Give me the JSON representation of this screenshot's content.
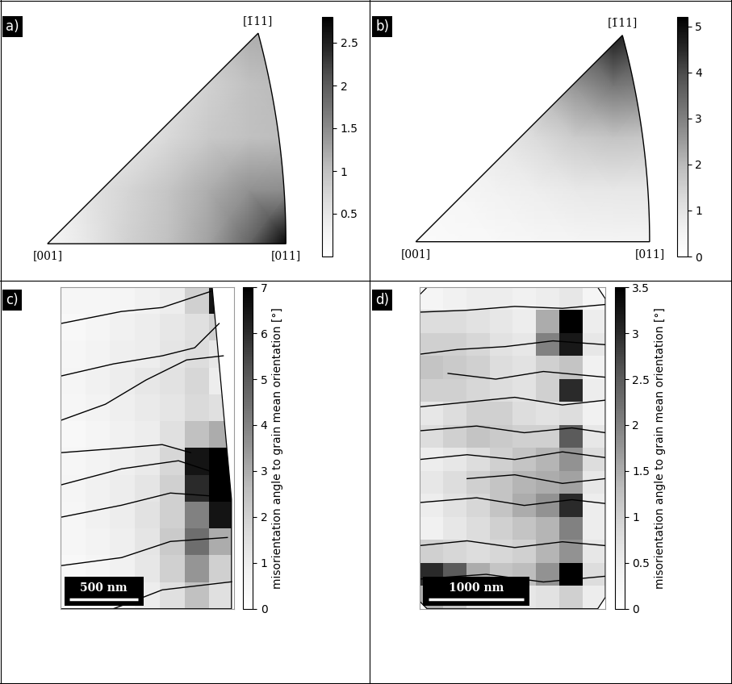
{
  "chart_data": [
    {
      "type": "inverse_pole_figure",
      "panel_label": "a)",
      "corner_labels": [
        "[001]",
        "[011]",
        "[1̄11]"
      ],
      "grid_x": [
        0,
        0.07,
        0.14,
        0.21,
        0.28,
        0.35,
        0.42
      ],
      "grid_y": [
        0,
        0.0925,
        0.185,
        0.2775,
        0.37
      ],
      "density": [
        [
          0.2,
          0.5,
          0.8,
          1.0,
          1.3,
          1.9,
          2.8
        ],
        [
          0.2,
          0.55,
          0.75,
          0.95,
          1.2,
          1.45,
          1.5
        ],
        [
          0.2,
          0.3,
          0.5,
          0.7,
          0.9,
          1.0,
          1.05
        ],
        [
          0.2,
          0.3,
          0.4,
          0.6,
          0.8,
          1.0,
          1.1
        ],
        [
          0.2,
          0.3,
          0.4,
          0.6,
          0.9,
          1.2,
          1.2
        ]
      ],
      "colorbar": {
        "range": [
          0,
          2.8
        ],
        "ticks": [
          0.5,
          1,
          1.5,
          2,
          2.5
        ]
      }
    },
    {
      "type": "inverse_pole_figure",
      "panel_label": "b)",
      "corner_labels": [
        "[001]",
        "[011]",
        "[1̄11]"
      ],
      "grid_x": [
        0,
        0.07,
        0.14,
        0.21,
        0.28,
        0.35,
        0.42
      ],
      "grid_y": [
        0,
        0.0925,
        0.185,
        0.2775,
        0.37
      ],
      "density": [
        [
          0.2,
          0.25,
          0.3,
          0.4,
          0.45,
          0.5,
          0.5
        ],
        [
          0.25,
          0.4,
          0.55,
          0.7,
          0.85,
          0.9,
          0.9
        ],
        [
          0.4,
          0.6,
          0.85,
          1.2,
          1.6,
          1.8,
          1.7
        ],
        [
          0.45,
          0.75,
          1.1,
          1.8,
          2.6,
          3.2,
          3.0
        ],
        [
          0.5,
          0.85,
          1.3,
          2.1,
          3.3,
          4.8,
          4.0
        ]
      ],
      "colorbar": {
        "range": [
          0,
          5.2
        ],
        "ticks": [
          0,
          1,
          2,
          3,
          4,
          5
        ]
      }
    },
    {
      "type": "map",
      "panel_label": "c)",
      "xlim": [
        0,
        1260
      ],
      "ylim": [
        2350,
        0
      ],
      "tick_labels": false,
      "outline": [
        [
          0,
          0
        ],
        [
          1100,
          0
        ],
        [
          1240,
          1550
        ],
        [
          1240,
          2350
        ],
        [
          0,
          2350
        ]
      ],
      "misorientation": [
        [
          0.5,
          0.5,
          0.6,
          0.8,
          1.0,
          2.0,
          6.5
        ],
        [
          0.4,
          0.6,
          0.8,
          1.0,
          1.2,
          1.5,
          2.0
        ],
        [
          0.5,
          0.7,
          0.9,
          1.0,
          1.3,
          1.6,
          1.2
        ],
        [
          0.6,
          0.8,
          1.0,
          1.2,
          1.4,
          1.8,
          1.0
        ],
        [
          0.5,
          0.7,
          0.9,
          1.1,
          1.3,
          1.7,
          1.5
        ],
        [
          0.4,
          0.6,
          0.8,
          1.0,
          1.5,
          2.5,
          3.0
        ],
        [
          0.5,
          0.7,
          0.9,
          1.1,
          1.8,
          6.5,
          7.0
        ],
        [
          0.6,
          0.8,
          1.0,
          1.3,
          2.0,
          6.0,
          7.0
        ],
        [
          0.5,
          0.8,
          1.0,
          1.4,
          2.0,
          4.0,
          6.5
        ],
        [
          0.5,
          0.7,
          0.9,
          1.3,
          2.2,
          4.5,
          3.0
        ],
        [
          0.4,
          0.6,
          0.8,
          1.2,
          2.0,
          3.5,
          2.0
        ],
        [
          0.4,
          0.5,
          0.7,
          1.0,
          1.5,
          2.5,
          1.5
        ]
      ],
      "grain_boundaries": [
        [
          [
            0,
            265
          ],
          [
            440,
            177
          ],
          [
            737,
            148
          ],
          [
            1090,
            30
          ]
        ],
        [
          [
            0,
            649
          ],
          [
            383,
            560
          ],
          [
            737,
            501
          ],
          [
            973,
            442
          ],
          [
            1150,
            265
          ]
        ],
        [
          [
            0,
            973
          ],
          [
            324,
            855
          ],
          [
            619,
            678
          ],
          [
            914,
            531
          ],
          [
            1180,
            501
          ]
        ],
        [
          [
            0,
            1209
          ],
          [
            383,
            1180
          ],
          [
            737,
            1150
          ],
          [
            944,
            1209
          ]
        ],
        [
          [
            0,
            1445
          ],
          [
            442,
            1327
          ],
          [
            855,
            1268
          ],
          [
            1210,
            1386
          ]
        ],
        [
          [
            0,
            1681
          ],
          [
            442,
            1593
          ],
          [
            796,
            1504
          ],
          [
            1210,
            1534
          ]
        ],
        [
          [
            0,
            2035
          ],
          [
            442,
            1976
          ],
          [
            796,
            1858
          ],
          [
            1210,
            1829
          ]
        ],
        [
          [
            383,
            2350
          ],
          [
            737,
            2212
          ],
          [
            1240,
            2153
          ]
        ]
      ],
      "scale_bar": {
        "length": 500,
        "label": "500 nm"
      },
      "colorbar": {
        "label": "misorientation angle to grain mean orientation [°]",
        "range": [
          0,
          7
        ],
        "ticks": [
          0,
          1,
          2,
          3,
          4,
          5,
          6,
          7
        ]
      }
    },
    {
      "type": "map",
      "panel_label": "d)",
      "xlim": [
        0,
        1950
      ],
      "ylim": [
        3360,
        0
      ],
      "tick_labels": false,
      "outline": [
        [
          0,
          80
        ],
        [
          80,
          0
        ],
        [
          1870,
          0
        ],
        [
          1950,
          120
        ],
        [
          1950,
          3240
        ],
        [
          1870,
          3360
        ],
        [
          80,
          3360
        ],
        [
          0,
          3280
        ]
      ],
      "misorientation": [
        [
          0.3,
          0.4,
          0.5,
          0.5,
          0.4,
          0.5,
          0.6,
          0.3
        ],
        [
          0.8,
          0.8,
          0.7,
          0.6,
          0.5,
          1.5,
          3.5,
          0.5
        ],
        [
          1.0,
          1.0,
          0.9,
          0.7,
          0.6,
          2.0,
          3.2,
          0.6
        ],
        [
          1.2,
          1.1,
          1.0,
          0.8,
          0.7,
          1.0,
          1.2,
          0.4
        ],
        [
          1.0,
          1.0,
          0.9,
          0.8,
          0.7,
          1.0,
          3.0,
          0.5
        ],
        [
          0.6,
          0.8,
          1.0,
          1.0,
          0.8,
          0.7,
          0.8,
          0.4
        ],
        [
          0.8,
          1.0,
          1.2,
          1.1,
          1.0,
          1.0,
          2.5,
          0.6
        ],
        [
          0.5,
          0.6,
          0.8,
          1.0,
          1.2,
          1.4,
          1.8,
          0.8
        ],
        [
          0.6,
          0.8,
          1.0,
          1.2,
          1.4,
          1.5,
          1.6,
          0.6
        ],
        [
          0.5,
          0.7,
          0.9,
          1.2,
          1.5,
          1.8,
          3.0,
          0.5
        ],
        [
          0.4,
          0.6,
          0.8,
          1.0,
          1.2,
          1.4,
          2.0,
          0.5
        ],
        [
          1.0,
          0.9,
          0.8,
          0.9,
          1.0,
          1.4,
          1.8,
          0.6
        ],
        [
          3.0,
          2.5,
          1.5,
          1.2,
          1.3,
          1.8,
          3.5,
          0.8
        ],
        [
          1.5,
          1.2,
          0.8,
          0.6,
          0.6,
          0.7,
          1.0,
          0.5
        ]
      ],
      "grain_boundaries": [
        [
          [
            0,
            260
          ],
          [
            500,
            240
          ],
          [
            1000,
            200
          ],
          [
            1500,
            220
          ],
          [
            1950,
            180
          ]
        ],
        [
          [
            0,
            700
          ],
          [
            400,
            650
          ],
          [
            900,
            620
          ],
          [
            1400,
            560
          ],
          [
            1950,
            600
          ]
        ],
        [
          [
            300,
            900
          ],
          [
            800,
            960
          ],
          [
            1300,
            880
          ],
          [
            1950,
            940
          ]
        ],
        [
          [
            0,
            1250
          ],
          [
            500,
            1200
          ],
          [
            1000,
            1150
          ],
          [
            1500,
            1230
          ],
          [
            1950,
            1180
          ]
        ],
        [
          [
            0,
            1500
          ],
          [
            600,
            1450
          ],
          [
            1100,
            1520
          ],
          [
            1600,
            1470
          ],
          [
            1950,
            1520
          ]
        ],
        [
          [
            0,
            1800
          ],
          [
            500,
            1750
          ],
          [
            1000,
            1800
          ],
          [
            1500,
            1720
          ],
          [
            1950,
            1780
          ]
        ],
        [
          [
            500,
            2000
          ],
          [
            1000,
            1960
          ],
          [
            1500,
            2050
          ],
          [
            1950,
            2000
          ]
        ],
        [
          [
            0,
            2250
          ],
          [
            600,
            2200
          ],
          [
            1100,
            2280
          ],
          [
            1600,
            2220
          ],
          [
            1950,
            2260
          ]
        ],
        [
          [
            0,
            2700
          ],
          [
            500,
            2650
          ],
          [
            1000,
            2720
          ],
          [
            1500,
            2660
          ],
          [
            1950,
            2700
          ]
        ],
        [
          [
            0,
            3050
          ],
          [
            700,
            3000
          ],
          [
            1300,
            3080
          ],
          [
            1950,
            3020
          ]
        ]
      ],
      "scale_bar": {
        "length": 1000,
        "label": "1000 nm"
      },
      "colorbar": {
        "label": "misorientation angle to grain mean orientation [°]",
        "range": [
          0,
          3.5
        ],
        "ticks": [
          0,
          0.5,
          1,
          1.5,
          2,
          2.5,
          3,
          3.5
        ]
      }
    }
  ]
}
